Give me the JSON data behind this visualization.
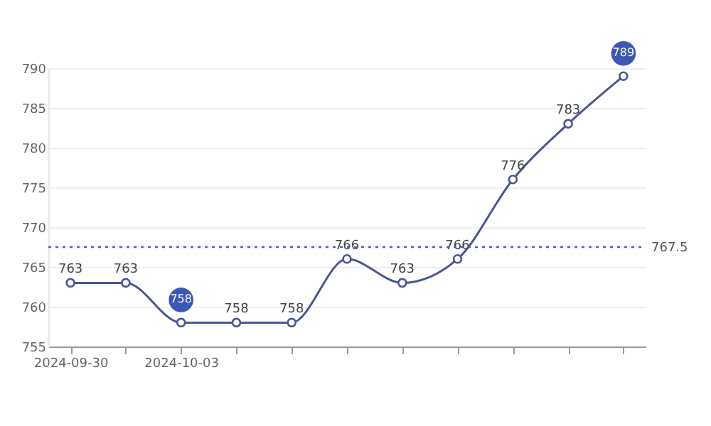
{
  "chart_data": {
    "type": "line",
    "categories": [
      "2024-09-30",
      null,
      "2024-10-03",
      null,
      null,
      null,
      null,
      null,
      null,
      null,
      null
    ],
    "series": [
      {
        "color": "#4a5596",
        "values": [
          763,
          763,
          758,
          758,
          758,
          766,
          763,
          766,
          776,
          783,
          789
        ]
      }
    ],
    "ylim": [
      755,
      790
    ],
    "yticks": [
      755,
      760,
      765,
      770,
      775,
      780,
      785,
      790
    ],
    "grid": "y",
    "marker": "circle",
    "line_style": "solid",
    "data_labels": true,
    "ref_lines": [
      {
        "axis": "y",
        "value": 767.5,
        "label": "767.5",
        "color": "#4a5ec0",
        "line_style": "dotted"
      }
    ]
  }
}
